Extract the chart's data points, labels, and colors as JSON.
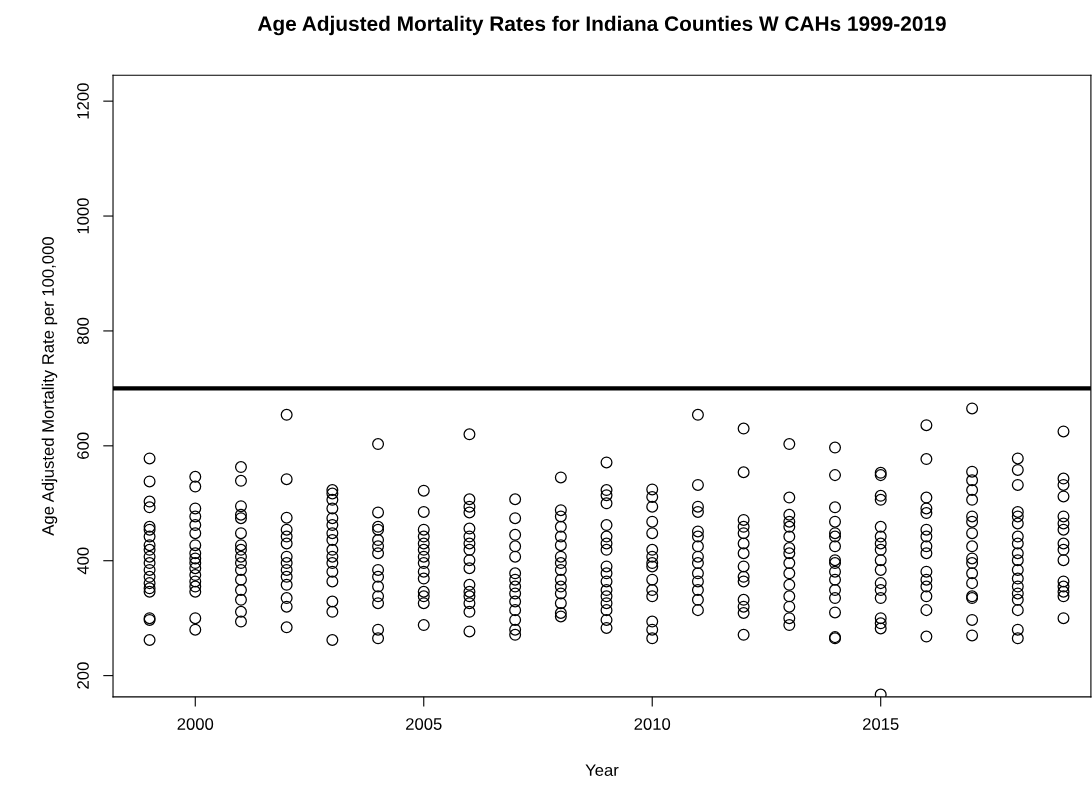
{
  "chart_data": {
    "type": "scatter",
    "title": "Age Adjusted Mortality Rates for Indiana Counties W CAHs 1999-2019",
    "xlabel": "Year",
    "ylabel": "Age Adjusted Mortality Rate per 100,000",
    "xlim": [
      1998.2,
      2019.6
    ],
    "xticks": [
      2000,
      2005,
      2010,
      2015
    ],
    "ylim": [
      163,
      1245
    ],
    "yticks": [
      200,
      400,
      600,
      800,
      1000,
      1200
    ],
    "grid": false,
    "marker": "circle",
    "ref_lines": [
      {
        "axis": "y",
        "value": 700,
        "color": "#000000"
      }
    ],
    "series": [
      {
        "color": "#000000",
        "x": [
          1999,
          1999,
          1999,
          1999,
          1999,
          1999,
          1999,
          1999,
          1999,
          1999,
          1999,
          1999,
          1999,
          1999,
          1999,
          1999,
          1999,
          1999,
          1999
        ],
        "values": [
          578,
          538,
          503,
          493,
          459,
          454,
          442,
          427,
          419,
          407,
          396,
          384,
          372,
          361,
          352,
          346,
          300,
          297,
          262
        ]
      },
      {
        "color": "#000000",
        "x": [
          2000,
          2000,
          2000,
          2000,
          2000,
          2000,
          2000,
          2000,
          2000,
          2000,
          2000,
          2000,
          2000,
          2000,
          2000,
          2000,
          2000
        ],
        "values": [
          546,
          529,
          491,
          477,
          462,
          448,
          427,
          413,
          404,
          396,
          387,
          375,
          364,
          355,
          346,
          300,
          280
        ]
      },
      {
        "color": "#000000",
        "x": [
          2001,
          2001,
          2001,
          2001,
          2001,
          2001,
          2001,
          2001,
          2001,
          2001,
          2001,
          2001,
          2001,
          2001,
          2001,
          2001
        ],
        "values": [
          563,
          539,
          495,
          480,
          474,
          448,
          427,
          419,
          407,
          396,
          384,
          367,
          349,
          332,
          311,
          294
        ]
      },
      {
        "color": "#000000",
        "x": [
          2002,
          2002,
          2002,
          2002,
          2002,
          2002,
          2002,
          2002,
          2002,
          2002,
          2002,
          2002,
          2002,
          2002
        ],
        "values": [
          654,
          542,
          475,
          454,
          442,
          430,
          407,
          396,
          384,
          372,
          358,
          335,
          320,
          284
        ]
      },
      {
        "color": "#000000",
        "x": [
          2003,
          2003,
          2003,
          2003,
          2003,
          2003,
          2003,
          2003,
          2003,
          2003,
          2003,
          2003,
          2003,
          2003,
          2003,
          2003
        ],
        "values": [
          523,
          517,
          506,
          491,
          474,
          462,
          448,
          436,
          419,
          407,
          396,
          381,
          364,
          329,
          311,
          262
        ]
      },
      {
        "color": "#000000",
        "x": [
          2004,
          2004,
          2004,
          2004,
          2004,
          2004,
          2004,
          2004,
          2004,
          2004,
          2004,
          2004,
          2004,
          2004
        ],
        "values": [
          603,
          484,
          459,
          454,
          436,
          425,
          413,
          384,
          372,
          355,
          338,
          326,
          280,
          265
        ]
      },
      {
        "color": "#000000",
        "x": [
          2005,
          2005,
          2005,
          2005,
          2005,
          2005,
          2005,
          2005,
          2005,
          2005,
          2005,
          2005,
          2005,
          2005
        ],
        "values": [
          522,
          485,
          454,
          442,
          430,
          419,
          407,
          396,
          381,
          369,
          346,
          338,
          326,
          288
        ]
      },
      {
        "color": "#000000",
        "x": [
          2006,
          2006,
          2006,
          2006,
          2006,
          2006,
          2006,
          2006,
          2006,
          2006,
          2006,
          2006,
          2006,
          2006,
          2006,
          2006
        ],
        "values": [
          620,
          507,
          494,
          484,
          456,
          442,
          430,
          419,
          401,
          387,
          358,
          346,
          338,
          326,
          311,
          277
        ]
      },
      {
        "color": "#000000",
        "x": [
          2007,
          2007,
          2007,
          2007,
          2007,
          2007,
          2007,
          2007,
          2007,
          2007,
          2007,
          2007,
          2007,
          2007
        ],
        "values": [
          507,
          474,
          445,
          425,
          407,
          378,
          367,
          355,
          343,
          329,
          314,
          297,
          280,
          271
        ]
      },
      {
        "color": "#000000",
        "x": [
          2008,
          2008,
          2008,
          2008,
          2008,
          2008,
          2008,
          2008,
          2008,
          2008,
          2008,
          2008,
          2008,
          2008,
          2008
        ],
        "values": [
          545,
          488,
          477,
          459,
          442,
          427,
          407,
          396,
          384,
          367,
          355,
          343,
          326,
          309,
          303
        ]
      },
      {
        "color": "#000000",
        "x": [
          2009,
          2009,
          2009,
          2009,
          2009,
          2009,
          2009,
          2009,
          2009,
          2009,
          2009,
          2009,
          2009,
          2009,
          2009,
          2009,
          2009
        ],
        "values": [
          571,
          523,
          514,
          500,
          462,
          442,
          430,
          419,
          390,
          378,
          364,
          349,
          338,
          326,
          314,
          297,
          283
        ]
      },
      {
        "color": "#000000",
        "x": [
          2010,
          2010,
          2010,
          2010,
          2010,
          2010,
          2010,
          2010,
          2010,
          2010,
          2010,
          2010,
          2010,
          2010,
          2010
        ],
        "values": [
          524,
          511,
          494,
          468,
          448,
          419,
          407,
          396,
          390,
          367,
          349,
          338,
          294,
          280,
          265
        ]
      },
      {
        "color": "#000000",
        "x": [
          2011,
          2011,
          2011,
          2011,
          2011,
          2011,
          2011,
          2011,
          2011,
          2011,
          2011,
          2011,
          2011,
          2011
        ],
        "values": [
          654,
          532,
          494,
          485,
          451,
          442,
          425,
          407,
          396,
          378,
          364,
          349,
          332,
          314
        ]
      },
      {
        "color": "#000000",
        "x": [
          2012,
          2012,
          2012,
          2012,
          2012,
          2012,
          2012,
          2012,
          2012,
          2012,
          2012,
          2012,
          2012,
          2012
        ],
        "values": [
          630,
          554,
          471,
          459,
          448,
          430,
          413,
          390,
          372,
          364,
          332,
          320,
          309,
          271
        ]
      },
      {
        "color": "#000000",
        "x": [
          2013,
          2013,
          2013,
          2013,
          2013,
          2013,
          2013,
          2013,
          2013,
          2013,
          2013,
          2013,
          2013,
          2013,
          2013
        ],
        "values": [
          603,
          510,
          480,
          468,
          459,
          442,
          422,
          413,
          396,
          378,
          358,
          338,
          320,
          300,
          288
        ]
      },
      {
        "color": "#000000",
        "x": [
          2014,
          2014,
          2014,
          2014,
          2014,
          2014,
          2014,
          2014,
          2014,
          2014,
          2014,
          2014,
          2014,
          2014,
          2014,
          2014
        ],
        "values": [
          597,
          549,
          493,
          468,
          448,
          442,
          425,
          401,
          396,
          381,
          367,
          349,
          335,
          310,
          267,
          265
        ]
      },
      {
        "color": "#000000",
        "x": [
          2015,
          2015,
          2015,
          2015,
          2015,
          2015,
          2015,
          2015,
          2015,
          2015,
          2015,
          2015,
          2015,
          2015,
          2015,
          2015,
          2015
        ],
        "values": [
          553,
          549,
          513,
          506,
          459,
          442,
          430,
          419,
          401,
          384,
          361,
          349,
          335,
          300,
          291,
          282,
          167
        ]
      },
      {
        "color": "#000000",
        "x": [
          2016,
          2016,
          2016,
          2016,
          2016,
          2016,
          2016,
          2016,
          2016,
          2016,
          2016,
          2016,
          2016,
          2016,
          2016
        ],
        "values": [
          636,
          577,
          510,
          491,
          483,
          454,
          442,
          425,
          413,
          381,
          367,
          355,
          338,
          314,
          268
        ]
      },
      {
        "color": "#000000",
        "x": [
          2017,
          2017,
          2017,
          2017,
          2017,
          2017,
          2017,
          2017,
          2017,
          2017,
          2017,
          2017,
          2017,
          2017,
          2017,
          2017,
          2017
        ],
        "values": [
          665,
          555,
          540,
          523,
          506,
          477,
          468,
          448,
          425,
          404,
          396,
          378,
          361,
          338,
          335,
          297,
          270
        ]
      },
      {
        "color": "#000000",
        "x": [
          2018,
          2018,
          2018,
          2018,
          2018,
          2018,
          2018,
          2018,
          2018,
          2018,
          2018,
          2018,
          2018,
          2018,
          2018,
          2018,
          2018,
          2018
        ],
        "values": [
          578,
          558,
          532,
          485,
          477,
          465,
          442,
          430,
          413,
          401,
          384,
          369,
          355,
          343,
          332,
          314,
          280,
          265
        ]
      },
      {
        "color": "#000000",
        "x": [
          2019,
          2019,
          2019,
          2019,
          2019,
          2019,
          2019,
          2019,
          2019,
          2019,
          2019,
          2019,
          2019,
          2019,
          2019
        ],
        "values": [
          625,
          543,
          532,
          512,
          477,
          465,
          454,
          430,
          419,
          401,
          364,
          355,
          346,
          338,
          300
        ]
      }
    ]
  }
}
